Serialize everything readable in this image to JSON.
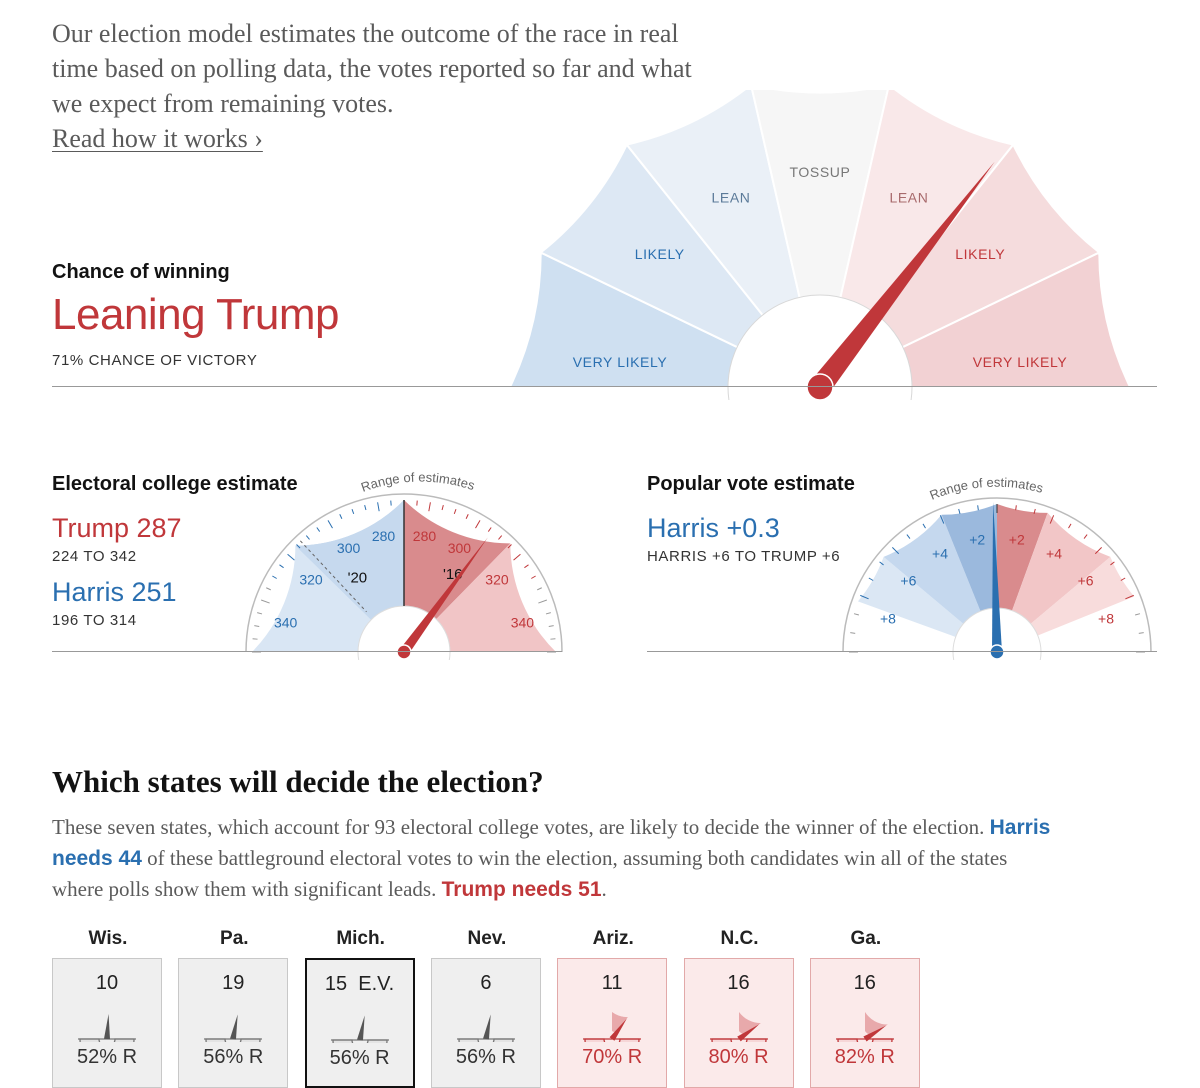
{
  "intro": {
    "text": "Our election model estimates the outcome of the race in real time based on polling data, the votes reported so far and what we expect from remaining votes.",
    "link_label": "Read how it works ›"
  },
  "chance": {
    "title": "Chance of winning",
    "value": "Leaning Trump",
    "sub": "71% CHANCE OF VICTORY",
    "segment_labels": [
      "VERY LIKELY",
      "LIKELY",
      "LEAN",
      "TOSSUP",
      "LEAN",
      "LIKELY",
      "VERY LIKELY"
    ]
  },
  "electoral": {
    "title": "Electoral college estimate",
    "trump_label": "Trump 287",
    "trump_range": "224 TO 342",
    "harris_label": "Harris 251",
    "harris_range": "196 TO 314",
    "range_label": "Range of estimates"
  },
  "popular": {
    "title": "Popular vote estimate",
    "value": "Harris +0.3",
    "range": "HARRIS +6 TO TRUMP +6",
    "range_label": "Range of estimates"
  },
  "states_section": {
    "title": "Which states will decide the election?",
    "desc_part1": "These seven states, which account for 93 electoral college votes, are likely to decide the winner of the election. ",
    "harris_needs": "Harris needs 44",
    "desc_part2": " of these battleground electoral votes to win the election, assuming both candidates win all of the states where polls show them with significant leads. ",
    "trump_needs": "Trump needs 51",
    "desc_end": "."
  },
  "chart_data": [
    {
      "type": "gauge",
      "segments": [
        "VERY LIKELY",
        "LIKELY",
        "LEAN",
        "TOSSUP",
        "LEAN",
        "LIKELY",
        "VERY LIKELY"
      ],
      "value": 0.71,
      "label": "Leaning Trump",
      "colors": {
        "blue": "#cfe0f1",
        "red": "#f3d0d1",
        "needle": "#c0373a"
      }
    },
    {
      "type": "gauge",
      "title": "Electoral college estimate",
      "ticks": {
        "harris_side": [
          "340",
          "320",
          "300",
          "280"
        ],
        "trump_side": [
          "280",
          "300",
          "320",
          "340"
        ]
      },
      "markers": [
        "'20",
        "'16"
      ],
      "estimate": {
        "Trump": 287,
        "Harris": 251
      },
      "ranges": {
        "Trump": [
          224,
          342
        ],
        "Harris": [
          196,
          314
        ]
      },
      "range_label": "Range of estimates"
    },
    {
      "type": "gauge",
      "title": "Popular vote estimate",
      "ticks": {
        "harris_side": [
          "+8",
          "+6",
          "+4",
          "+2"
        ],
        "trump_side": [
          "+2",
          "+4",
          "+6",
          "+8"
        ]
      },
      "estimate": "Harris +0.3",
      "range": "HARRIS +6 TO TRUMP +6",
      "range_label": "Range of estimates"
    },
    {
      "type": "table",
      "states": [
        {
          "name": "Wis.",
          "ev": "10",
          "pct": "52% R",
          "value": 0.52,
          "color": "gray",
          "selected": false
        },
        {
          "name": "Pa.",
          "ev": "19",
          "pct": "56% R",
          "value": 0.56,
          "color": "gray",
          "selected": false
        },
        {
          "name": "Mich.",
          "ev": "15  E.V.",
          "pct": "56% R",
          "value": 0.56,
          "color": "gray",
          "selected": true
        },
        {
          "name": "Nev.",
          "ev": "6",
          "pct": "56% R",
          "value": 0.56,
          "color": "gray",
          "selected": false
        },
        {
          "name": "Ariz.",
          "ev": "11",
          "pct": "70% R",
          "value": 0.7,
          "color": "red",
          "selected": false
        },
        {
          "name": "N.C.",
          "ev": "16",
          "pct": "80% R",
          "value": 0.8,
          "color": "red",
          "selected": false
        },
        {
          "name": "Ga.",
          "ev": "16",
          "pct": "82% R",
          "value": 0.82,
          "color": "red",
          "selected": false
        }
      ]
    }
  ]
}
